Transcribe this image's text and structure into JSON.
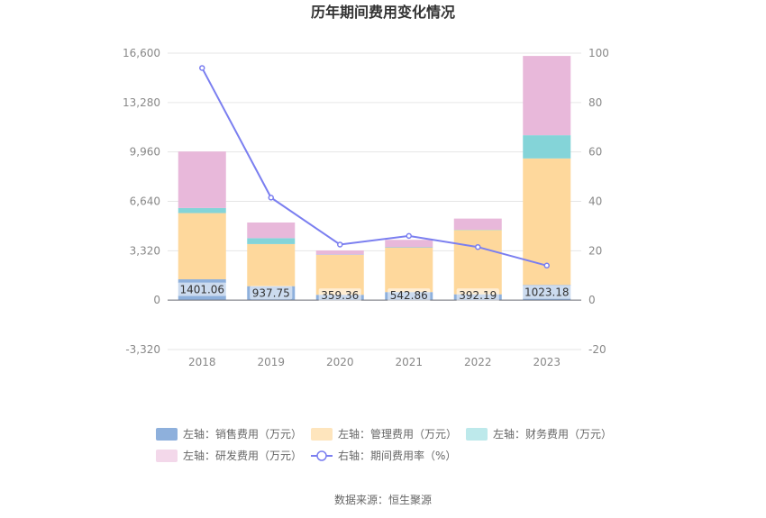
{
  "chart_data": {
    "type": "bar",
    "title": "历年期间费用变化情况",
    "categories": [
      "2018",
      "2019",
      "2020",
      "2021",
      "2022",
      "2023"
    ],
    "y_left": {
      "ticks": [
        "16,600",
        "13,280",
        "9,960",
        "6,640",
        "3,320",
        "0",
        "-3,320"
      ],
      "ylim": [
        -3320,
        16600
      ]
    },
    "y_right": {
      "ticks": [
        "100",
        "80",
        "60",
        "40",
        "20",
        "0",
        "-20"
      ],
      "ylim": [
        -20,
        100
      ]
    },
    "series": [
      {
        "name": "左轴：销售费用（万元）",
        "type": "bar",
        "color": "#8eb0dc",
        "values": [
          1401.06,
          937.75,
          359.36,
          542.86,
          392.19,
          1023.18
        ],
        "labels": [
          "1401.06",
          "937.75",
          "359.36",
          "542.86",
          "392.19",
          "1023.18"
        ]
      },
      {
        "name": "左轴：管理费用（万元）",
        "type": "bar",
        "color": "#fed89c",
        "values": [
          4450,
          2830,
          2680,
          2980,
          4320,
          8500
        ]
      },
      {
        "name": "左轴：财务费用（万元）",
        "type": "bar",
        "color": "#84d4d8",
        "values": [
          340,
          400,
          20,
          30,
          20,
          1560
        ]
      },
      {
        "name": "左轴：研发费用（万元）",
        "type": "bar",
        "color": "#e8b8da",
        "values": [
          3800,
          1050,
          280,
          500,
          750,
          5330
        ]
      },
      {
        "name": "右轴：期间费用率（%）",
        "type": "line",
        "color": "#7b7ff0",
        "values": [
          94,
          41.5,
          22.5,
          26,
          21.5,
          14
        ]
      }
    ],
    "legend_position": "bottom",
    "grid": true
  },
  "legend": [
    {
      "label": "左轴：销售费用（万元）",
      "color": "#8eb0dc",
      "kind": "bar"
    },
    {
      "label": "左轴：管理费用（万元）",
      "color": "#fee5bd",
      "kind": "bar"
    },
    {
      "label": "左轴：财务费用（万元）",
      "color": "#bde9eb",
      "kind": "bar"
    },
    {
      "label": "左轴：研发费用（万元）",
      "color": "#f3d8ea",
      "kind": "bar"
    },
    {
      "label": "右轴：期间费用率（%）",
      "color": "#7b7ff0",
      "kind": "line"
    }
  ],
  "source": "数据来源：恒生聚源"
}
